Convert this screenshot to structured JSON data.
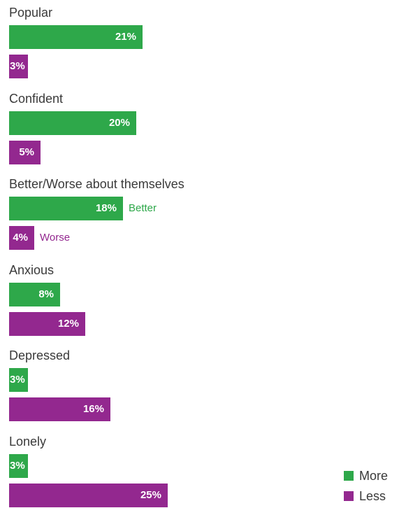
{
  "colors": {
    "more": "#2ea84a",
    "less": "#93288f"
  },
  "chart_data": {
    "type": "bar",
    "orientation": "horizontal",
    "categories": [
      "Popular",
      "Confident",
      "Better/Worse about themselves",
      "Anxious",
      "Depressed",
      "Lonely"
    ],
    "series": [
      {
        "name": "More",
        "values": [
          21,
          20,
          18,
          8,
          3,
          3
        ],
        "labels": [
          "21%",
          "20%",
          "18%",
          "8%",
          "3%",
          "3%"
        ]
      },
      {
        "name": "Less",
        "values": [
          3,
          5,
          4,
          12,
          16,
          25
        ],
        "labels": [
          "3%",
          "5%",
          "4%",
          "12%",
          "16%",
          "25%"
        ]
      }
    ],
    "annotations": [
      {
        "category": "Better/Worse about themselves",
        "series": "More",
        "text": "Better"
      },
      {
        "category": "Better/Worse about themselves",
        "series": "Less",
        "text": "Worse"
      }
    ],
    "unit": "%",
    "xlim": [
      0,
      25
    ],
    "grid": false,
    "legend": {
      "position": "bottom-right",
      "entries": [
        "More",
        "Less"
      ]
    }
  }
}
